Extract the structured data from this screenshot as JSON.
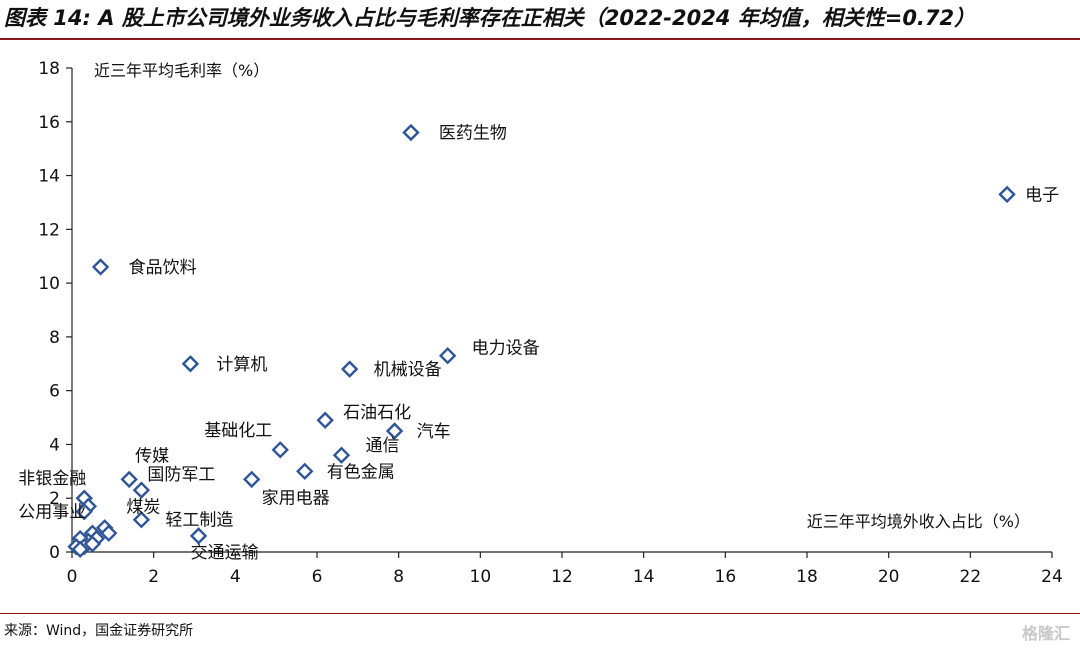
{
  "title": "图表 14: A 股上市公司境外业务收入占比与毛利率存在正相关（2022-2024 年均值，相关性=0.72）",
  "source": "来源：Wind，国金证券研究所",
  "watermark": "格隆汇",
  "chart_data": {
    "type": "scatter",
    "xlabel": "近三年平均境外收入占比（%）",
    "ylabel": "近三年平均毛利率（%）",
    "xlim": [
      0,
      24
    ],
    "ylim": [
      0,
      18
    ],
    "xticks": [
      0,
      2,
      4,
      6,
      8,
      10,
      12,
      14,
      16,
      18,
      20,
      22,
      24
    ],
    "yticks": [
      0,
      2,
      4,
      6,
      8,
      10,
      12,
      14,
      16,
      18
    ],
    "marker": "diamond",
    "marker_color": "#2e5597",
    "grid": false,
    "points": [
      {
        "x": 8.3,
        "y": 15.6,
        "label": "医药生物"
      },
      {
        "x": 22.9,
        "y": 13.3,
        "label": "电子"
      },
      {
        "x": 0.7,
        "y": 10.6,
        "label": "食品饮料"
      },
      {
        "x": 2.9,
        "y": 7.0,
        "label": "计算机"
      },
      {
        "x": 9.2,
        "y": 7.3,
        "label": "电力设备"
      },
      {
        "x": 6.8,
        "y": 6.8,
        "label": "机械设备"
      },
      {
        "x": 6.2,
        "y": 4.9,
        "label": "石油石化"
      },
      {
        "x": 7.9,
        "y": 4.5,
        "label": "汽车"
      },
      {
        "x": 5.1,
        "y": 3.8,
        "label": "基础化工"
      },
      {
        "x": 6.6,
        "y": 3.6,
        "label": "通信"
      },
      {
        "x": 5.7,
        "y": 3.0,
        "label": "有色金属"
      },
      {
        "x": 4.4,
        "y": 2.7,
        "label": "家用电器"
      },
      {
        "x": 1.4,
        "y": 2.7,
        "label": "传媒"
      },
      {
        "x": 1.7,
        "y": 2.3,
        "label": "国防军工"
      },
      {
        "x": 0.3,
        "y": 2.0,
        "label": "非银金融"
      },
      {
        "x": 0.4,
        "y": 1.7,
        "label": "煤炭"
      },
      {
        "x": 1.7,
        "y": 1.2,
        "label": "轻工制造"
      },
      {
        "x": 0.3,
        "y": 1.5,
        "label": "公用事业"
      },
      {
        "x": 3.1,
        "y": 0.6,
        "label": "交通运输"
      },
      {
        "x": 0.5,
        "y": 0.7,
        "label": ""
      },
      {
        "x": 0.8,
        "y": 0.9,
        "label": ""
      },
      {
        "x": 0.9,
        "y": 0.7,
        "label": ""
      },
      {
        "x": 0.6,
        "y": 0.5,
        "label": ""
      },
      {
        "x": 0.4,
        "y": 0.4,
        "label": ""
      },
      {
        "x": 0.2,
        "y": 0.5,
        "label": ""
      },
      {
        "x": 0.3,
        "y": 0.2,
        "label": ""
      },
      {
        "x": 0.1,
        "y": 0.2,
        "label": ""
      },
      {
        "x": 0.5,
        "y": 0.3,
        "label": ""
      },
      {
        "x": 0.2,
        "y": 0.1,
        "label": ""
      }
    ]
  }
}
